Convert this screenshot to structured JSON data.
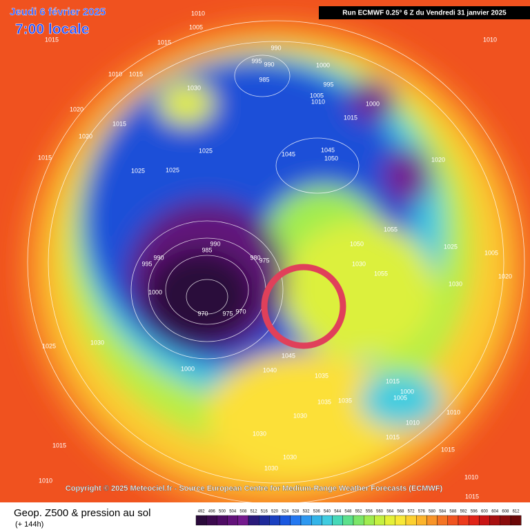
{
  "header": {
    "date": "Jeudi 6 février 2025",
    "time": "7:00 locale",
    "run": "Run ECMWF 0.25° 6 Z du Vendredi 31 janvier 2025"
  },
  "copyright": "Copyright © 2025 Meteociel.fr - Source European Centre for Medium-Range Weather Forecasts (ECMWF)",
  "footer": {
    "title": "Geop. Z500 & pression au sol",
    "lead": "(+ 144h)"
  },
  "scale": {
    "labels": [
      "492",
      "496",
      "500",
      "504",
      "508",
      "512",
      "516",
      "520",
      "524",
      "528",
      "532",
      "536",
      "540",
      "544",
      "548",
      "552",
      "556",
      "560",
      "564",
      "568",
      "572",
      "576",
      "580",
      "584",
      "588",
      "592",
      "596",
      "600",
      "604",
      "608",
      "612"
    ],
    "colors": [
      "#2a0a3a",
      "#3c0a4e",
      "#4e0c64",
      "#62127a",
      "#741a8e",
      "#2a1a7a",
      "#1e2a9a",
      "#1a40c0",
      "#1a58e0",
      "#2478f0",
      "#2e98f0",
      "#34b4e8",
      "#40cce0",
      "#46d8b8",
      "#5ce08c",
      "#7ce66a",
      "#a0ec50",
      "#c4f040",
      "#e4f038",
      "#f8e838",
      "#fcd030",
      "#fcb42c",
      "#f89428",
      "#f47424",
      "#f05420",
      "#ec3a1c",
      "#e02418",
      "#c81414",
      "#a81010",
      "#8a0c0c",
      "#6a0808"
    ]
  },
  "isobars": [
    "1010",
    "1005",
    "1015",
    "1015",
    "990",
    "995",
    "990",
    "1000",
    "985",
    "1010",
    "1015",
    "1030",
    "995",
    "1005",
    "1010",
    "1000",
    "1020",
    "1015",
    "1015",
    "1020",
    "1025",
    "1045",
    "1045",
    "1050",
    "1015",
    "1025",
    "1025",
    "1055",
    "1050",
    "995",
    "990",
    "985",
    "980",
    "975",
    "990",
    "1000",
    "970",
    "975",
    "970",
    "1030",
    "1025",
    "1000",
    "1035",
    "1040",
    "1045",
    "1015",
    "1005",
    "1000",
    "1035",
    "1035",
    "1030",
    "1030",
    "1030",
    "1030",
    "1015",
    "1010",
    "1010",
    "1030",
    "1055",
    "1030",
    "1025",
    "1020",
    "1005",
    "1010",
    "1015",
    "1010",
    "1015",
    "1010",
    "1015",
    "1020"
  ]
}
